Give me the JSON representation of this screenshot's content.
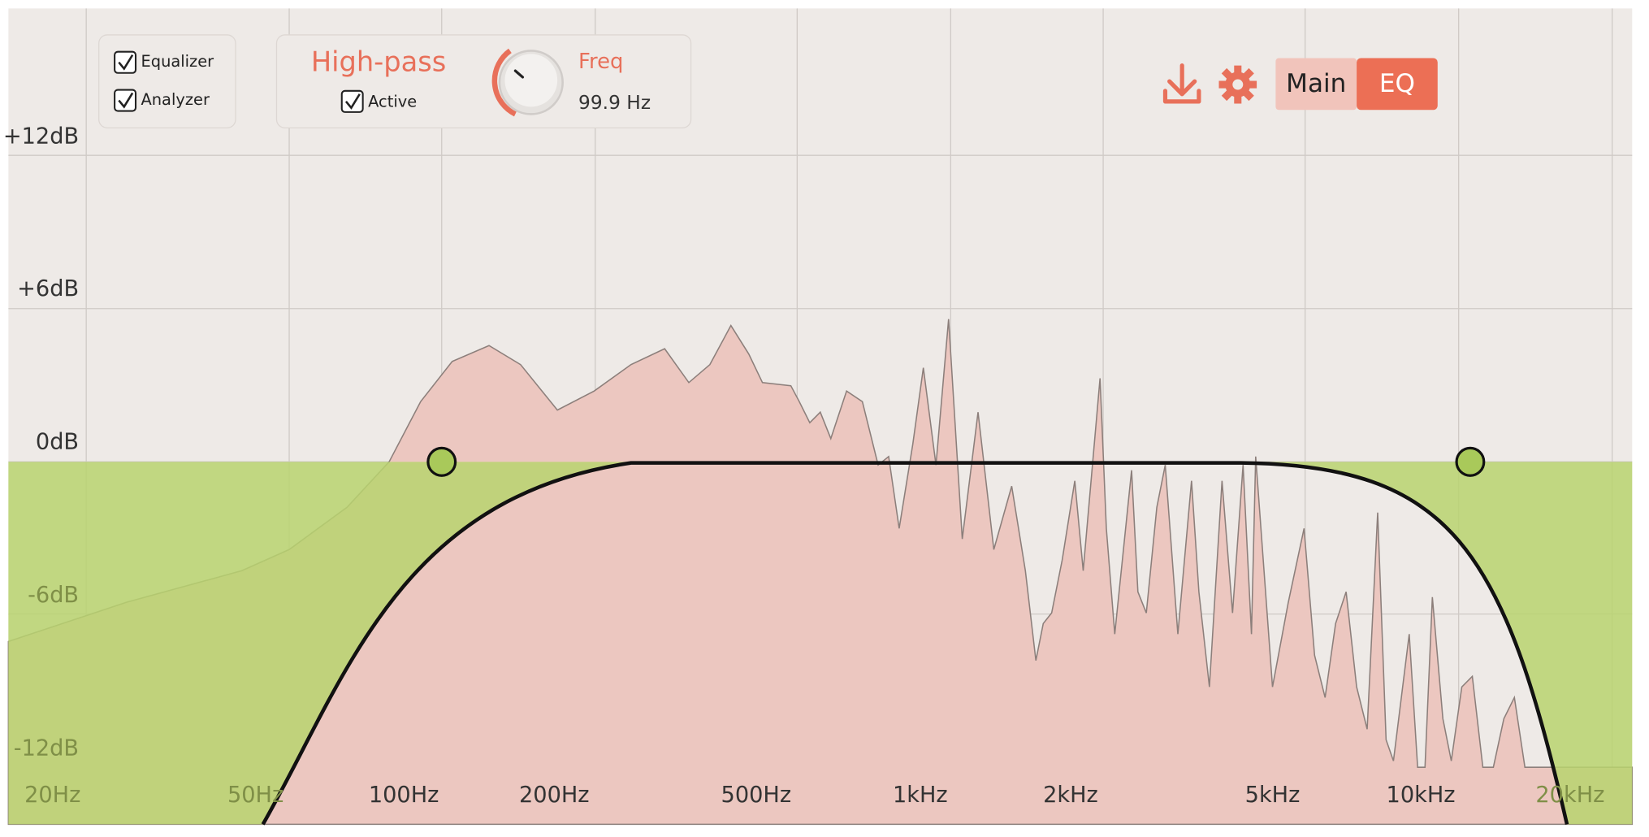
{
  "toggles": [
    {
      "label": "Equalizer",
      "checked": true
    },
    {
      "label": "Analyzer",
      "checked": true
    }
  ],
  "filter": {
    "name": "High-pass",
    "active_label": "Active",
    "active": true,
    "param_label": "Freq",
    "param_value": "99.9 Hz"
  },
  "tabs": [
    {
      "label": "Main",
      "selected": false
    },
    {
      "label": "EQ",
      "selected": true
    }
  ],
  "y_axis_labels": [
    "+12dB",
    "+6dB",
    "0dB",
    "-6dB",
    "-12dB"
  ],
  "x_axis_labels": [
    "20Hz",
    "50Hz",
    "100Hz",
    "200Hz",
    "500Hz",
    "1kHz",
    "2kHz",
    "5kHz",
    "10kHz",
    "20kHz"
  ]
}
